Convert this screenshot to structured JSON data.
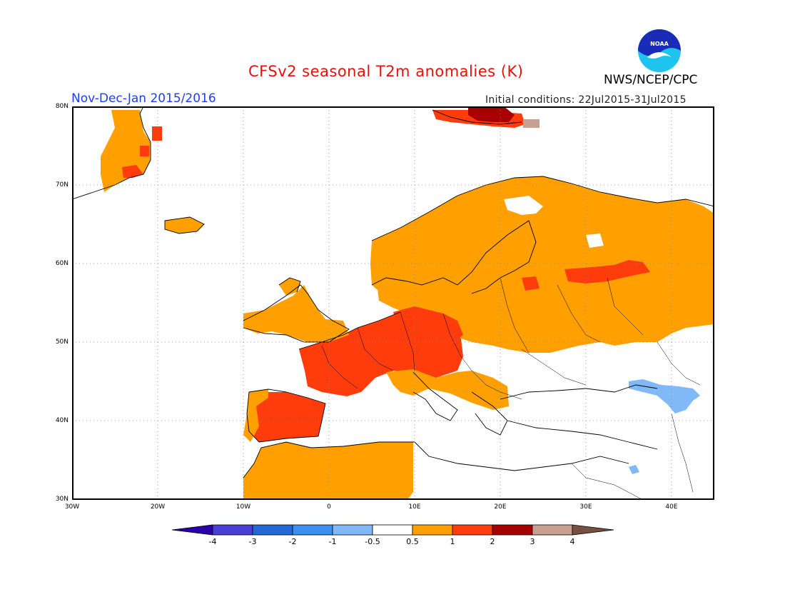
{
  "header": {
    "title": "CFSv2 seasonal T2m anomalies (K)",
    "organization": "NWS/NCEP/CPC",
    "period": "Nov-Dec-Jan 2015/2016",
    "initial_conditions": "Initial conditions: 22Jul2015-31Jul2015",
    "logo_text": "NOAA"
  },
  "map": {
    "lon_range": [
      -30,
      45
    ],
    "lat_range": [
      30,
      80
    ],
    "grid_lines": true,
    "y_ticks": [
      "80N",
      "70N",
      "60N",
      "50N",
      "40N",
      "30N"
    ],
    "x_ticks": [
      "30W",
      "20W",
      "10W",
      "0",
      "10E",
      "20E",
      "30E",
      "40E"
    ],
    "anomaly_regions": [
      {
        "name": "Iberia & France",
        "class": "1-2"
      },
      {
        "name": "Central Europe",
        "class": "1-2"
      },
      {
        "name": "Scandinavia & Russia",
        "class": "0.5-1"
      },
      {
        "name": "Western Russia",
        "class": "1-2"
      },
      {
        "name": "North Africa",
        "class": "0.5-1"
      },
      {
        "name": "Svalbard",
        "class": "2-3"
      },
      {
        "name": "Caucasus",
        "class": "-1--0.5"
      }
    ]
  },
  "colorbar": {
    "labels": [
      "-4",
      "-3",
      "-2",
      "-1",
      "-0.5",
      "0.5",
      "1",
      "2",
      "3",
      "4"
    ],
    "colors": [
      "#2a00a8",
      "#4a3ed6",
      "#2468d8",
      "#3c8ef0",
      "#80b8f8",
      "#ffffff",
      "#ffa000",
      "#ff3c0c",
      "#a80000",
      "#c8a090",
      "#785040"
    ]
  }
}
